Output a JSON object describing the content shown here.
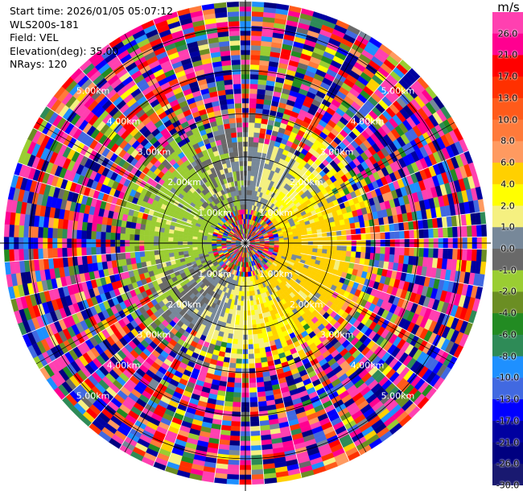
{
  "header": {
    "start_time": "Start time: 2026/01/05 05:07:12",
    "instrument": "WLS200s-181",
    "field": "Field: VEL",
    "elevation": "Elevation(deg): 35.00",
    "nrays": "NRays: 120"
  },
  "chart_data": {
    "type": "heatmap",
    "subtype": "polar-ppi",
    "field": "VEL",
    "units": "m/s",
    "n_rays": 120,
    "range_rings_km": [
      1.0,
      2.0,
      3.0,
      4.0,
      5.0
    ],
    "ring_labels": [
      "1.00km",
      "2.00km",
      "3.00km",
      "4.00km",
      "5.00km"
    ],
    "max_range_km": 5.6,
    "colorbar": {
      "ticks": [
        26.0,
        21.0,
        17.0,
        13.0,
        10.0,
        8.0,
        6.0,
        4.0,
        2.0,
        1.0,
        0.0,
        -1.0,
        -2.0,
        -4.0,
        -6.0,
        -8.0,
        -10.0,
        -13.0,
        -17.0,
        -21.0,
        -26.0,
        -30.0
      ],
      "colors": [
        "#ff40b0",
        "#ff0090",
        "#ff0000",
        "#ff3000",
        "#ff5a1a",
        "#ff7a3a",
        "#ff9a60",
        "#ffd000",
        "#ffff00",
        "#f5f080",
        "#778899",
        "#696969",
        "#9acd32",
        "#6b8e23",
        "#228b22",
        "#2e8b57",
        "#1e90ff",
        "#4169e1",
        "#0000ff",
        "#0000a0",
        "#000080",
        "#191970"
      ]
    }
  }
}
